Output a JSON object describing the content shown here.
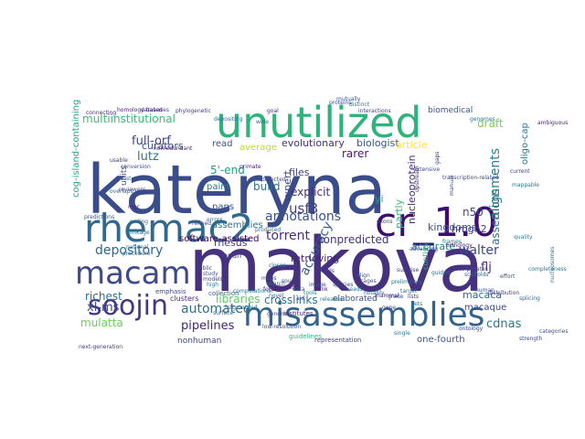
{
  "words": [
    {
      "text": "kateryna",
      "color": "#3b4c8a"
    },
    {
      "text": "makova",
      "color": "#46317e"
    },
    {
      "text": "unutilized",
      "color": "#2cb47c"
    },
    {
      "text": "rhemac2",
      "color": "#30698e"
    },
    {
      "text": "cr_1.0",
      "color": "#3b0f70"
    },
    {
      "text": "macam",
      "color": "#3e4a89"
    },
    {
      "text": "misassemblies",
      "color": "#33638d"
    },
    {
      "text": "soojin",
      "color": "#443983"
    },
    {
      "text": "depository",
      "color": "#31688e"
    },
    {
      "text": "full-orf",
      "color": "#414487"
    },
    {
      "text": "multiinstitutional",
      "color": "#3bbb75"
    },
    {
      "text": "annotations",
      "color": "#3a538b"
    },
    {
      "text": "torrent",
      "color": "#472d7b"
    },
    {
      "text": "nonpredicted",
      "color": "#46327e"
    },
    {
      "text": "automated",
      "color": "#2d708e"
    },
    {
      "text": "pipelines",
      "color": "#482475"
    },
    {
      "text": "mulatta",
      "color": "#6ccd5a"
    },
    {
      "text": "cdnas",
      "color": "#2a788e"
    },
    {
      "text": "crosslinks",
      "color": "#2c728e"
    },
    {
      "text": "walter",
      "color": "#404688"
    },
    {
      "text": "alignments",
      "color": "#277f8e"
    },
    {
      "text": "assertions",
      "color": "#2d708e"
    },
    {
      "text": "accuracy",
      "color": "#365c8d"
    },
    {
      "text": "usf3",
      "color": "#433e85"
    },
    {
      "text": "richest",
      "color": "#2e6f8e"
    },
    {
      "text": "xl-ms",
      "color": "#3e4989"
    },
    {
      "text": "lutz",
      "color": "#2b758e"
    },
    {
      "text": "evolutionary",
      "color": "#46307e"
    },
    {
      "text": "biologist",
      "color": "#3a548c"
    },
    {
      "text": "explicit",
      "color": "#482979"
    },
    {
      "text": "rarer",
      "color": "#48186a"
    },
    {
      "text": "files",
      "color": "#424086"
    },
    {
      "text": "accurate",
      "color": "#2a778e"
    },
    {
      "text": "kingdoms",
      "color": "#3c4f8a"
    },
    {
      "text": "n50",
      "color": "#414487"
    },
    {
      "text": "hmgn2",
      "color": "#433e85"
    },
    {
      "text": "macacа",
      "color": "#31688e"
    },
    {
      "text": "flj",
      "color": "#482979"
    },
    {
      "text": "paint",
      "color": "#2a788e"
    },
    {
      "text": "paps",
      "color": "#3b528b"
    },
    {
      "text": "build",
      "color": "#2c728e"
    },
    {
      "text": "expert",
      "color": "#3e4a89"
    },
    {
      "text": "libraries",
      "color": "#5ec962"
    },
    {
      "text": "rhesus",
      "color": "#433e85"
    },
    {
      "text": "curators",
      "color": "#3b528b"
    },
    {
      "text": "article",
      "color": "#fde725"
    },
    {
      "text": "draft",
      "color": "#7ad151"
    },
    {
      "text": "partly",
      "color": "#35b779"
    },
    {
      "text": "nonhuman",
      "color": "#3e4a89"
    },
    {
      "text": "software-assisted",
      "color": "#440154"
    },
    {
      "text": "retrieving",
      "color": "#482475"
    },
    {
      "text": "one-fourth",
      "color": "#39558c"
    },
    {
      "text": "elaborated",
      "color": "#3b528b"
    },
    {
      "text": "oligo-cap",
      "color": "#2a778e"
    },
    {
      "text": "read",
      "color": "#3b528b"
    },
    {
      "text": "average",
      "color": "#b8de29"
    },
    {
      "text": "assemblies",
      "color": "#2c728e"
    },
    {
      "text": "cog-island-containing",
      "color": "#20a486"
    },
    {
      "text": "5'-end",
      "color": "#1f9e89"
    },
    {
      "text": "nucleoprotein",
      "color": "#472d7b"
    },
    {
      "text": "macaque",
      "color": "#3e4989"
    },
    {
      "text": "yi",
      "color": "#1fa088"
    },
    {
      "text": "biomedical",
      "color": "#3b528b"
    },
    {
      "text": "clusters",
      "color": "#482979"
    },
    {
      "text": "contigs",
      "color": "#35b779"
    },
    {
      "text": "emphasis",
      "color": "#3e4a89"
    },
    {
      "text": "collection",
      "color": "#31688e"
    },
    {
      "text": "japan",
      "color": "#414487"
    },
    {
      "text": "depositing",
      "color": "#2c728e"
    },
    {
      "text": "institutes",
      "color": "#482475"
    },
    {
      "text": "guidelines",
      "color": "#35b779"
    },
    {
      "text": "low-resolution",
      "color": "#3e4a89"
    },
    {
      "text": "representation",
      "color": "#414487"
    },
    {
      "text": "genomes",
      "color": "#2a778e"
    },
    {
      "text": "nonredundant",
      "color": "#482475"
    },
    {
      "text": "phylogenetic",
      "color": "#443983"
    },
    {
      "text": "connecting",
      "color": "#482979"
    },
    {
      "text": "mutually",
      "color": "#3b528b"
    },
    {
      "text": "preliminary",
      "color": "#2c728e"
    },
    {
      "text": "scaffolds",
      "color": "#31688e"
    },
    {
      "text": "incorporates",
      "color": "#414487"
    },
    {
      "text": "frames",
      "color": "#2a788e"
    },
    {
      "text": "ambiguous",
      "color": "#482475"
    },
    {
      "text": "transcription-related",
      "color": "#3e4a89"
    },
    {
      "text": "nucleosomes",
      "color": "#2c728e"
    },
    {
      "text": "distribution",
      "color": "#443983"
    },
    {
      "text": "splicing",
      "color": "#31688e"
    },
    {
      "text": "effort",
      "color": "#3b528b"
    },
    {
      "text": "exons",
      "color": "#414487"
    },
    {
      "text": "releases",
      "color": "#2a788e"
    },
    {
      "text": "advancing",
      "color": "#3e4a89"
    },
    {
      "text": "orthology",
      "color": "#482979"
    },
    {
      "text": "guided",
      "color": "#31688e"
    },
    {
      "text": "computational",
      "color": "#2c728e"
    },
    {
      "text": "surprise",
      "color": "#443983"
    },
    {
      "text": "predictions",
      "color": "#3b528b"
    },
    {
      "text": "interactions",
      "color": "#414487"
    },
    {
      "text": "distinct",
      "color": "#2a788e"
    },
    {
      "text": "databases",
      "color": "#3e4a89"
    },
    {
      "text": "homology-based",
      "color": "#482475"
    },
    {
      "text": "national",
      "color": "#31688e"
    },
    {
      "text": "procedure",
      "color": "#2c728e"
    },
    {
      "text": "reviewers",
      "color": "#443983"
    },
    {
      "text": "conversion",
      "color": "#3b528b"
    },
    {
      "text": "refined",
      "color": "#414487"
    },
    {
      "text": "produced",
      "color": "#2a788e"
    },
    {
      "text": "detected",
      "color": "#3e4a89"
    },
    {
      "text": "goal",
      "color": "#482979"
    },
    {
      "text": "wide",
      "color": "#31688e"
    },
    {
      "text": "fragmented",
      "color": "#2c728e"
    },
    {
      "text": "next-generation",
      "color": "#443983"
    },
    {
      "text": "categories",
      "color": "#3b528b"
    },
    {
      "text": "ontology",
      "color": "#414487"
    },
    {
      "text": "completeness",
      "color": "#2a788e"
    },
    {
      "text": "proteins",
      "color": "#3e4a89"
    },
    {
      "text": "primate",
      "color": "#482475"
    },
    {
      "text": "errors",
      "color": "#31688e"
    },
    {
      "text": "single",
      "color": "#2c728e"
    },
    {
      "text": "gaps",
      "color": "#443983"
    },
    {
      "text": "manual",
      "color": "#3b528b"
    },
    {
      "text": "current",
      "color": "#414487"
    },
    {
      "text": "mappable",
      "color": "#2a788e"
    },
    {
      "text": "extensive",
      "color": "#3e4a89"
    },
    {
      "text": "upstream",
      "color": "#482979"
    },
    {
      "text": "overlaps",
      "color": "#31688e"
    },
    {
      "text": "cost",
      "color": "#2c728e"
    },
    {
      "text": "usable",
      "color": "#443983"
    },
    {
      "text": "human",
      "color": "#3b528b"
    },
    {
      "text": "strength",
      "color": "#414487"
    },
    {
      "text": "quality",
      "color": "#2a788e"
    },
    {
      "text": "genome",
      "color": "#3e4a89"
    },
    {
      "text": "chimeric",
      "color": "#482475"
    },
    {
      "text": "surface",
      "color": "#31688e"
    },
    {
      "text": "closes",
      "color": "#2c728e"
    },
    {
      "text": "kinds",
      "color": "#443983"
    },
    {
      "text": "align",
      "color": "#3b528b"
    },
    {
      "text": "species",
      "color": "#414487"
    },
    {
      "text": "reads",
      "color": "#2a788e"
    },
    {
      "text": "cages",
      "color": "#3e4a89"
    },
    {
      "text": "mammal",
      "color": "#482979"
    },
    {
      "text": "notably",
      "color": "#31688e"
    },
    {
      "text": "target",
      "color": "#2c728e"
    },
    {
      "text": "lists",
      "color": "#443983"
    },
    {
      "text": "grade",
      "color": "#3b528b"
    },
    {
      "text": "gene",
      "color": "#414487"
    },
    {
      "text": "sets",
      "color": "#2a788e"
    },
    {
      "text": "units",
      "color": "#3e4a89"
    },
    {
      "text": "mgc",
      "color": "#482475"
    },
    {
      "text": "coding",
      "color": "#31688e"
    },
    {
      "text": "linkage",
      "color": "#2c728e"
    },
    {
      "text": "public",
      "color": "#443983"
    },
    {
      "text": "study",
      "color": "#3b528b"
    },
    {
      "text": "models",
      "color": "#414487"
    },
    {
      "text": "high",
      "color": "#2a788e"
    },
    {
      "text": "maps",
      "color": "#3e4a89"
    },
    {
      "text": "focus",
      "color": "#482979"
    },
    {
      "text": "novel",
      "color": "#31688e"
    },
    {
      "text": "search",
      "color": "#2c728e"
    },
    {
      "text": "source",
      "color": "#443983"
    },
    {
      "text": "data",
      "color": "#3b528b"
    },
    {
      "text": "aid",
      "color": "#414487"
    },
    {
      "text": "tools",
      "color": "#2a788e"
    },
    {
      "text": "image",
      "color": "#3e4a89"
    },
    {
      "text": "bank",
      "color": "#482475"
    },
    {
      "text": "clone",
      "color": "#31688e"
    },
    {
      "text": "range",
      "color": "#2c728e"
    },
    {
      "text": "users",
      "color": "#443983"
    }
  ]
}
